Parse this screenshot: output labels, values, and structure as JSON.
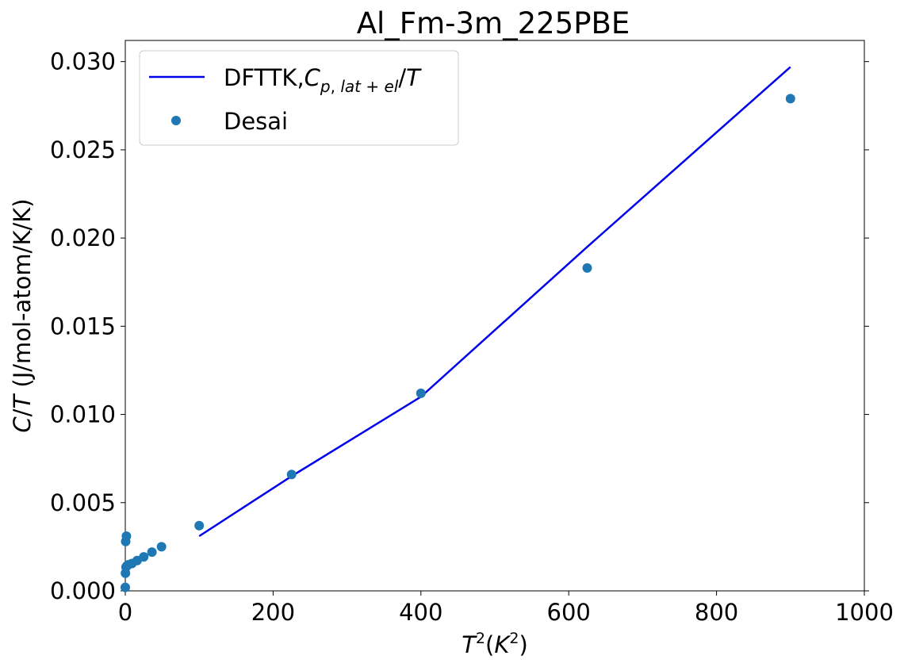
{
  "chart_data": {
    "type": "scatter",
    "title": "Al_Fm-3m_225PBE",
    "xlabel": "T^2(K^2)",
    "ylabel": "C/T (J/mol-atom/K/K)",
    "xlim": [
      0,
      1000
    ],
    "ylim": [
      0,
      0.0312
    ],
    "xticks": [
      0,
      200,
      400,
      600,
      800,
      1000
    ],
    "xtick_labels": [
      "0",
      "200",
      "400",
      "600",
      "800",
      "1000"
    ],
    "yticks": [
      0,
      0.005,
      0.01,
      0.015,
      0.02,
      0.025,
      0.03
    ],
    "ytick_labels": [
      "0.000",
      "0.005",
      "0.010",
      "0.015",
      "0.020",
      "0.025",
      "0.030"
    ],
    "grid": false,
    "legend_position": "top-left",
    "series": [
      {
        "name": "DFTTK,C_{p,lat+el}/T",
        "kind": "line",
        "color": "#0000ee",
        "x": [
          100,
          225,
          400,
          625,
          900
        ],
        "y": [
          0.0031,
          0.0065,
          0.011,
          0.0195,
          0.0297
        ]
      },
      {
        "name": "Desai",
        "kind": "scatter",
        "color": "#1f77b4",
        "x": [
          0,
          0.25,
          1,
          2.25,
          4,
          9,
          16,
          25,
          36,
          49,
          100,
          225,
          400,
          625,
          900,
          0.5,
          1.5
        ],
        "y": [
          0.0002,
          0.001,
          0.00135,
          0.00142,
          0.00148,
          0.00155,
          0.00172,
          0.00193,
          0.0022,
          0.0025,
          0.0037,
          0.0066,
          0.0112,
          0.0183,
          0.0279,
          0.0028,
          0.0031
        ]
      }
    ]
  }
}
